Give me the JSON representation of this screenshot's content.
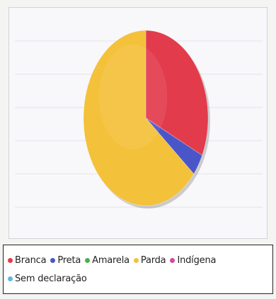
{
  "chart_data": {
    "type": "pie",
    "title": "",
    "categories": [
      "Branca",
      "Preta",
      "Amarela",
      "Parda",
      "Indígena",
      "Sem declaração"
    ],
    "values": [
      32,
      4,
      0,
      64,
      0,
      0
    ],
    "colors": [
      "#e23b4b",
      "#4a55c8",
      "#4caf50",
      "#f3c13a",
      "#d24a9e",
      "#63b6e0"
    ],
    "legend_position": "bottom",
    "grid": true
  },
  "legend": {
    "items": [
      {
        "label": "Branca",
        "color": "#e23b4b"
      },
      {
        "label": "Preta",
        "color": "#4a55c8"
      },
      {
        "label": "Amarela",
        "color": "#4caf50"
      },
      {
        "label": "Parda",
        "color": "#f3c13a"
      },
      {
        "label": "Indígena",
        "color": "#d24a9e"
      },
      {
        "label": "Sem declaração",
        "color": "#63b6e0"
      }
    ]
  }
}
